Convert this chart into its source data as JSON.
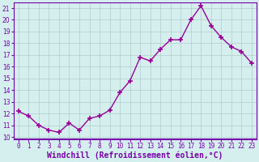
{
  "x": [
    0,
    1,
    2,
    3,
    4,
    5,
    6,
    7,
    8,
    9,
    10,
    11,
    12,
    13,
    14,
    15,
    16,
    17,
    18,
    19,
    20,
    21,
    22,
    23
  ],
  "y": [
    12.2,
    11.8,
    11.0,
    10.6,
    10.4,
    11.2,
    10.6,
    11.6,
    11.8,
    12.3,
    13.8,
    14.8,
    16.8,
    16.5,
    17.5,
    18.3,
    18.3,
    20.0,
    21.2,
    19.5,
    18.5,
    17.7,
    17.3,
    16.3
  ],
  "line_color": "#990099",
  "marker": "+",
  "marker_size": 4,
  "xlabel": "Windchill (Refroidissement éolien,°C)",
  "xlabel_fontsize": 7,
  "ylim": [
    9.8,
    21.5
  ],
  "xlim": [
    -0.5,
    23.5
  ],
  "yticks": [
    10,
    11,
    12,
    13,
    14,
    15,
    16,
    17,
    18,
    19,
    20,
    21
  ],
  "xticks": [
    0,
    1,
    2,
    3,
    4,
    5,
    6,
    7,
    8,
    9,
    10,
    11,
    12,
    13,
    14,
    15,
    16,
    17,
    18,
    19,
    20,
    21,
    22,
    23
  ],
  "bg_color": "#d5efef",
  "grid_color": "#b0cccc",
  "tick_fontsize": 5.5,
  "line_width": 1.0,
  "spine_color": "#7700aa",
  "xlabel_color": "#7700aa"
}
